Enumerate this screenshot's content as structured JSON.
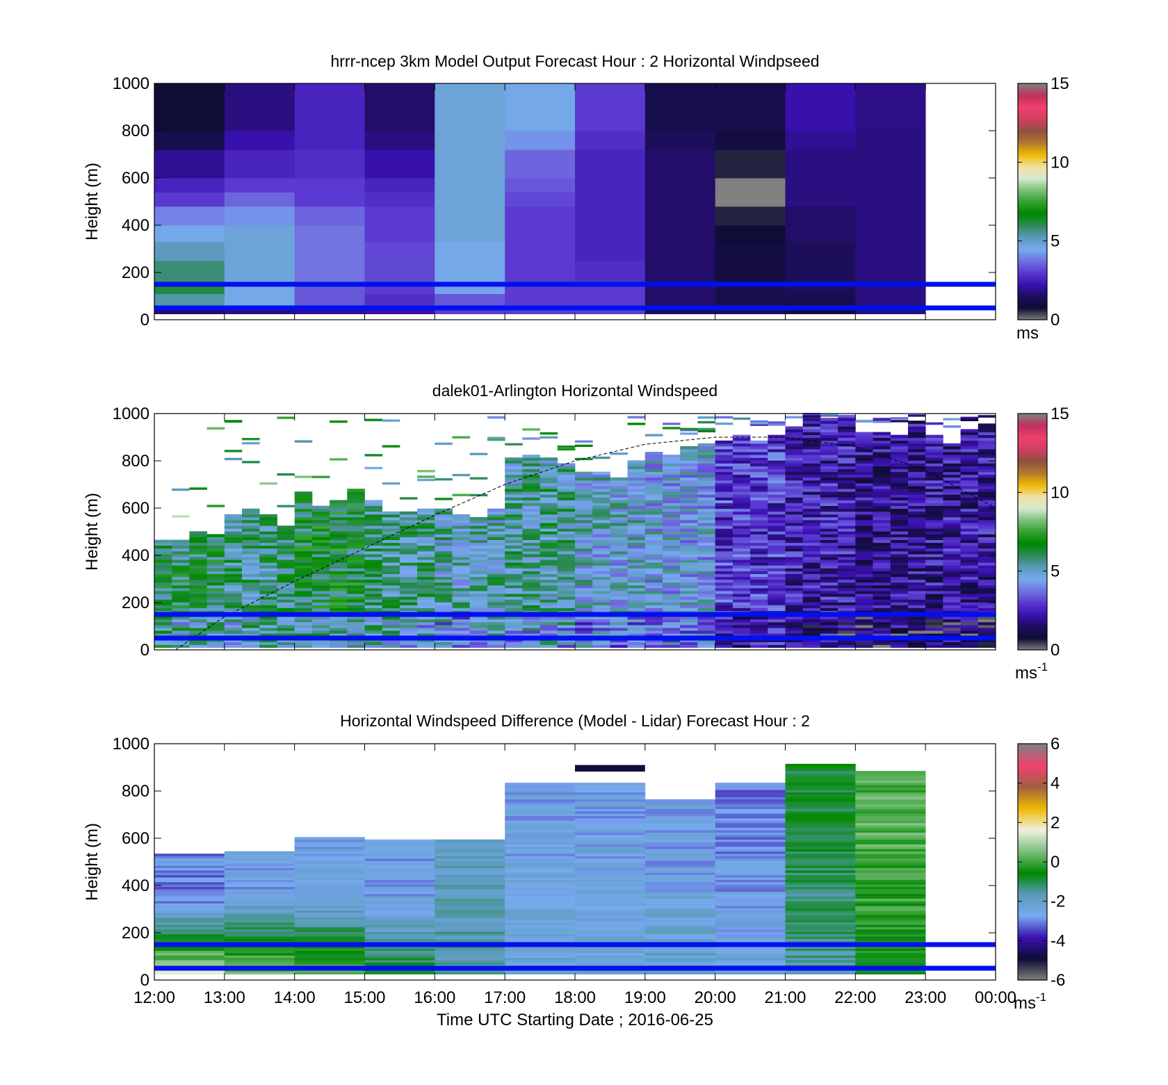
{
  "figure": {
    "xlabel": "Time UTC  Starting Date ; 2016-06-25",
    "x_ticks": [
      "12:00",
      "13:00",
      "14:00",
      "15:00",
      "16:00",
      "17:00",
      "18:00",
      "19:00",
      "20:00",
      "21:00",
      "22:00",
      "23:00",
      "00:00"
    ]
  },
  "colors": {
    "ref_lines": "#0010ee",
    "colormap_speed": [
      "#808080",
      "#0d0d33",
      "#1e0e5e",
      "#3a10b0",
      "#5a3ad0",
      "#7070e0",
      "#78aaf0",
      "#5a9ab8",
      "#2e8a5a",
      "#008800",
      "#30a030",
      "#7cc07c",
      "#d8ead0",
      "#f0e0a0",
      "#f0b800",
      "#b07830",
      "#905040",
      "#d04060",
      "#f04070",
      "#c0305a",
      "#808080"
    ],
    "colormap_diff": [
      "#808080",
      "#0d0d33",
      "#3a10b0",
      "#78aaf0",
      "#5a9ab8",
      "#008800",
      "#7cc07c",
      "#f0f0e0",
      "#f0b800",
      "#a06040",
      "#f04070",
      "#808080"
    ]
  },
  "chart_data": [
    {
      "type": "heatmap",
      "title": "hrrr-ncep 3km Model Output   Forecast Hour : 2 Horizontal Windpseed",
      "ylabel": "Height (m)",
      "ylim": [
        0,
        1000
      ],
      "y_ticks": [
        "0",
        "200",
        "400",
        "600",
        "800",
        "1000"
      ],
      "colorbar": {
        "range": [
          0,
          15
        ],
        "ticks": [
          "0",
          "5",
          "10",
          "15"
        ],
        "label": "ms"
      },
      "ref_lines_m": [
        150,
        50
      ],
      "x_hours": [
        0,
        1,
        2,
        3,
        4,
        5,
        6,
        7,
        8,
        9,
        10,
        11,
        12
      ],
      "columns_speed_ms_by_height": [
        {
          "hour": "12:00",
          "levels": [
            [
              0,
              1.6
            ],
            [
              60,
              5.4
            ],
            [
              110,
              6.2
            ],
            [
              160,
              5.8
            ],
            [
              250,
              5.2
            ],
            [
              330,
              4.6
            ],
            [
              400,
              4.0
            ],
            [
              480,
              3.0
            ],
            [
              540,
              2.6
            ],
            [
              600,
              2.0
            ],
            [
              720,
              1.2
            ],
            [
              800,
              0.8
            ]
          ]
        },
        {
          "hour": "13:00",
          "levels": [
            [
              0,
              1.8
            ],
            [
              60,
              4.6
            ],
            [
              110,
              4.6
            ],
            [
              160,
              4.8
            ],
            [
              330,
              4.8
            ],
            [
              400,
              4.2
            ],
            [
              480,
              3.6
            ],
            [
              540,
              3.0
            ],
            [
              600,
              2.6
            ],
            [
              720,
              2.2
            ],
            [
              800,
              1.8
            ]
          ]
        },
        {
          "hour": "14:00",
          "levels": [
            [
              0,
              2.0
            ],
            [
              60,
              3.4
            ],
            [
              110,
              3.4
            ],
            [
              160,
              3.8
            ],
            [
              330,
              3.8
            ],
            [
              400,
              3.6
            ],
            [
              480,
              3.0
            ],
            [
              540,
              3.0
            ],
            [
              600,
              2.8
            ],
            [
              720,
              2.6
            ],
            [
              800,
              2.6
            ]
          ]
        },
        {
          "hour": "15:00",
          "levels": [
            [
              0,
              2.2
            ],
            [
              60,
              2.8
            ],
            [
              110,
              3.0
            ],
            [
              160,
              3.2
            ],
            [
              330,
              3.0
            ],
            [
              400,
              3.0
            ],
            [
              480,
              2.8
            ],
            [
              540,
              2.6
            ],
            [
              600,
              2.2
            ],
            [
              720,
              1.8
            ],
            [
              800,
              1.6
            ]
          ]
        },
        {
          "hour": "16:00",
          "levels": [
            [
              0,
              3.0
            ],
            [
              60,
              3.4
            ],
            [
              110,
              4.4
            ],
            [
              160,
              4.6
            ],
            [
              330,
              4.8
            ],
            [
              400,
              4.8
            ],
            [
              480,
              4.8
            ],
            [
              540,
              4.8
            ],
            [
              600,
              4.8
            ],
            [
              720,
              4.8
            ],
            [
              800,
              4.8
            ]
          ]
        },
        {
          "hour": "17:00",
          "levels": [
            [
              0,
              3.0
            ],
            [
              60,
              3.0
            ],
            [
              110,
              3.0
            ],
            [
              160,
              3.0
            ],
            [
              330,
              3.0
            ],
            [
              400,
              3.0
            ],
            [
              480,
              3.2
            ],
            [
              540,
              3.4
            ],
            [
              600,
              3.6
            ],
            [
              720,
              4.2
            ],
            [
              800,
              4.6
            ]
          ]
        },
        {
          "hour": "18:00",
          "levels": [
            [
              0,
              3.0
            ],
            [
              60,
              3.0
            ],
            [
              110,
              3.0
            ],
            [
              160,
              2.8
            ],
            [
              250,
              2.6
            ],
            [
              330,
              2.6
            ],
            [
              400,
              2.6
            ],
            [
              480,
              2.6
            ],
            [
              540,
              2.6
            ],
            [
              600,
              2.6
            ],
            [
              720,
              2.8
            ],
            [
              800,
              3.0
            ]
          ]
        },
        {
          "hour": "19:00",
          "levels": [
            [
              0,
              1.4
            ],
            [
              60,
              1.6
            ],
            [
              110,
              1.6
            ],
            [
              160,
              1.6
            ],
            [
              330,
              1.6
            ],
            [
              400,
              1.6
            ],
            [
              480,
              1.6
            ],
            [
              540,
              1.6
            ],
            [
              600,
              1.6
            ],
            [
              720,
              1.4
            ],
            [
              800,
              1.2
            ]
          ]
        },
        {
          "hour": "20:00",
          "levels": [
            [
              0,
              1.4
            ],
            [
              60,
              1.2
            ],
            [
              110,
              1.2
            ],
            [
              160,
              1.0
            ],
            [
              250,
              1.0
            ],
            [
              330,
              0.8
            ],
            [
              400,
              0.6
            ],
            [
              480,
              0.0
            ],
            [
              540,
              0.0
            ],
            [
              600,
              0.6
            ],
            [
              720,
              1.0
            ],
            [
              800,
              1.2
            ]
          ]
        },
        {
          "hour": "21:00",
          "levels": [
            [
              0,
              1.0
            ],
            [
              60,
              1.2
            ],
            [
              110,
              1.4
            ],
            [
              160,
              1.4
            ],
            [
              330,
              1.6
            ],
            [
              400,
              1.6
            ],
            [
              480,
              1.8
            ],
            [
              540,
              1.8
            ],
            [
              600,
              1.8
            ],
            [
              720,
              2.0
            ],
            [
              800,
              2.2
            ]
          ]
        },
        {
          "hour": "22:00",
          "levels": [
            [
              0,
              1.8
            ],
            [
              60,
              1.8
            ],
            [
              110,
              1.8
            ],
            [
              160,
              1.8
            ],
            [
              330,
              1.8
            ],
            [
              400,
              1.8
            ],
            [
              480,
              1.8
            ],
            [
              540,
              1.8
            ],
            [
              600,
              1.8
            ],
            [
              720,
              1.8
            ],
            [
              800,
              1.9
            ]
          ]
        }
      ]
    },
    {
      "type": "heatmap",
      "title": "dalek01-Arlington  Horizontal Windspeed",
      "ylabel": "Height (m)",
      "ylim": [
        0,
        1000
      ],
      "y_ticks": [
        "0",
        "200",
        "400",
        "600",
        "800",
        "1000"
      ],
      "colorbar": {
        "range": [
          0,
          15
        ],
        "ticks": [
          "0",
          "5",
          "10",
          "15"
        ],
        "label": "ms",
        "label_sup": "-1"
      },
      "ref_lines_m": [
        150,
        50
      ],
      "boundary_layer_curve": {
        "x_hours": [
          0.3,
          1,
          2,
          3,
          4,
          5,
          6,
          7,
          8,
          9,
          10,
          11,
          12
        ],
        "height_m": [
          0,
          140,
          290,
          430,
          570,
          700,
          800,
          870,
          900,
          900,
          860,
          760,
          600
        ]
      },
      "profiles_hourly": [
        {
          "hour": "12:00",
          "top_m": 530,
          "mean_speed_ms": 6.2
        },
        {
          "hour": "13:00",
          "top_m": 600,
          "mean_speed_ms": 5.8
        },
        {
          "hour": "14:00",
          "top_m": 680,
          "mean_speed_ms": 6.4
        },
        {
          "hour": "15:00",
          "top_m": 640,
          "mean_speed_ms": 5.6
        },
        {
          "hour": "16:00",
          "top_m": 600,
          "mean_speed_ms": 5.2
        },
        {
          "hour": "17:00",
          "top_m": 840,
          "mean_speed_ms": 5.4
        },
        {
          "hour": "18:00",
          "top_m": 800,
          "mean_speed_ms": 4.8
        },
        {
          "hour": "19:00",
          "top_m": 880,
          "mean_speed_ms": 4.6
        },
        {
          "hour": "20:00",
          "top_m": 940,
          "mean_speed_ms": 3.0
        },
        {
          "hour": "21:00",
          "top_m": 1000,
          "mean_speed_ms": 2.4
        },
        {
          "hour": "22:00",
          "top_m": 980,
          "mean_speed_ms": 2.0
        },
        {
          "hour": "23:00",
          "top_m": 950,
          "mean_speed_ms": 2.2
        }
      ]
    },
    {
      "type": "heatmap",
      "title": "Horizontal Windspeed Difference (Model - Lidar) Forecast Hour : 2",
      "ylabel": "Height (m)",
      "ylim": [
        0,
        1000
      ],
      "y_ticks": [
        "0",
        "200",
        "400",
        "600",
        "800",
        "1000"
      ],
      "colorbar": {
        "range": [
          -6,
          6
        ],
        "ticks": [
          "-6",
          "-4",
          "-2",
          "0",
          "2",
          "4",
          "6"
        ],
        "label": "ms",
        "label_sup": "-1"
      },
      "ref_lines_m": [
        150,
        50
      ],
      "columns": [
        {
          "hour": "12:00",
          "top_m": 530,
          "diff_low": 1.2,
          "diff_high": -3.0
        },
        {
          "hour": "13:00",
          "top_m": 545,
          "diff_low": 0.6,
          "diff_high": -2.6
        },
        {
          "hour": "14:00",
          "top_m": 600,
          "diff_low": 0.2,
          "diff_high": -2.6
        },
        {
          "hour": "15:00",
          "top_m": 590,
          "diff_low": -0.8,
          "diff_high": -2.8
        },
        {
          "hour": "16:00",
          "top_m": 590,
          "diff_low": -1.6,
          "diff_high": -1.8
        },
        {
          "hour": "17:00",
          "top_m": 835,
          "diff_low": -2.2,
          "diff_high": -2.6
        },
        {
          "hour": "18:00",
          "top_m": 835,
          "diff_low": -2.4,
          "diff_high": -2.6
        },
        {
          "hour": "19:00",
          "top_m": 760,
          "diff_low": -2.0,
          "diff_high": -2.6
        },
        {
          "hour": "20:00",
          "top_m": 835,
          "diff_low": -2.2,
          "diff_high": -3.0
        },
        {
          "hour": "21:00",
          "top_m": 910,
          "diff_low": -1.6,
          "diff_high": -0.8
        },
        {
          "hour": "22:00",
          "top_m": 880,
          "diff_low": -0.6,
          "diff_high": 0.2
        }
      ]
    }
  ]
}
